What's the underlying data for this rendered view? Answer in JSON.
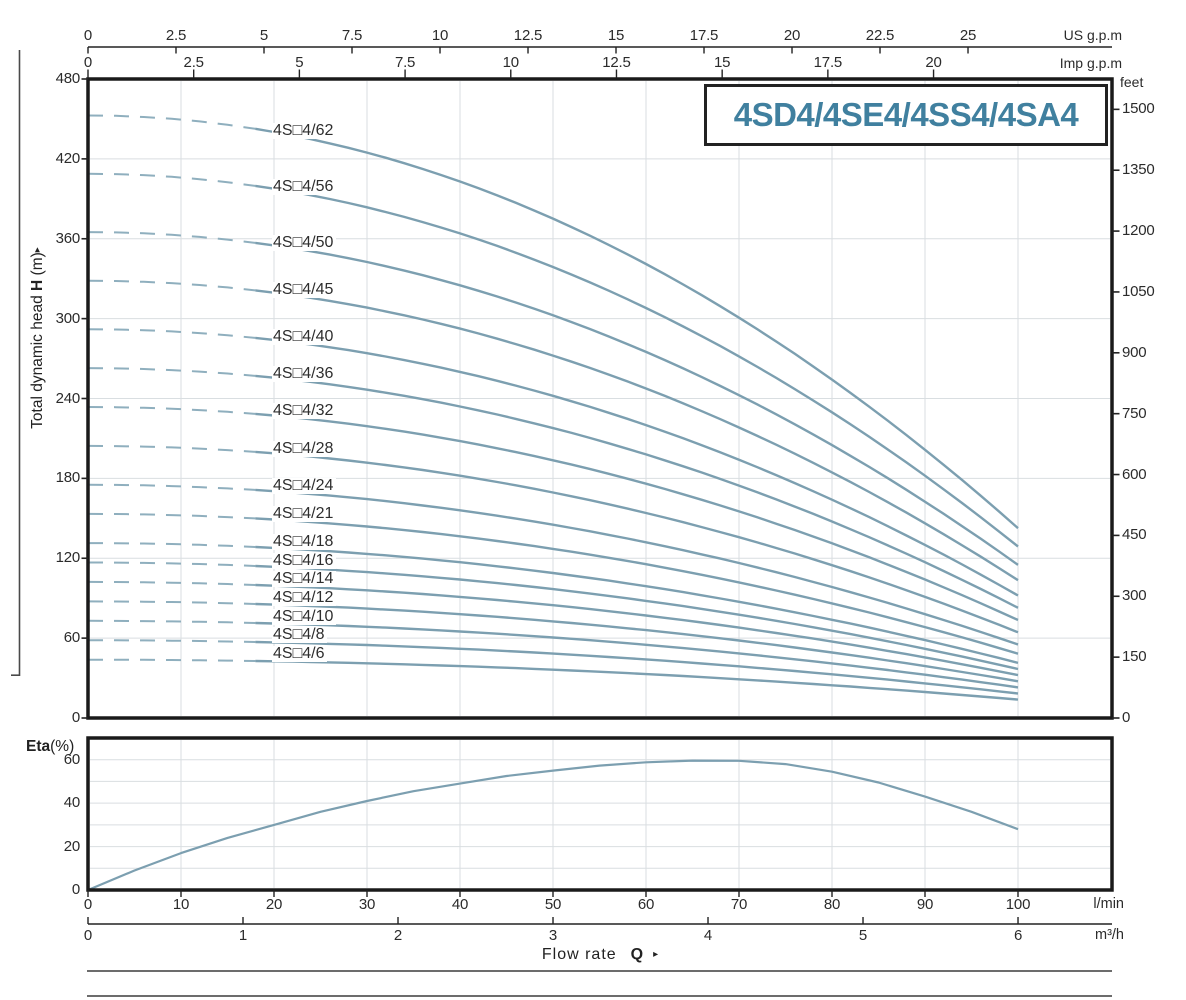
{
  "figure": {
    "title": "4SD4/4SE4/4SS4/4SA4",
    "flow_axis_label": {
      "text": "Flow rate",
      "bold": "Q",
      "arrow": "▸"
    },
    "head_axis_label": {
      "prefix": "Total dynamic head ",
      "bold": "H",
      "suffix": " (m)",
      "arrow": "▸"
    },
    "eta_axis_label": {
      "bold": "Eta",
      "suffix": "(%)"
    }
  },
  "colors": {
    "accent_title": "#40809f",
    "curve": "#7c9fb0",
    "curve_dash": "#8fafbe",
    "grid": "#d9dee1",
    "axis_box": "#1a1a1a",
    "thin_line": "#3c3c3c",
    "text": "#2b2b2b"
  },
  "chart_data": [
    {
      "type": "line",
      "title": "4SD4/4SE4/4SS4/4SA4",
      "xlabel": "Flow rate Q",
      "ylabel": "Total dynamic head H (m)",
      "x_axes": [
        {
          "label": "US g.p.m",
          "lmin_per_unit": 3.785,
          "ticks": [
            0,
            2.5,
            5,
            7.5,
            10,
            12.5,
            15,
            17.5,
            20,
            22.5,
            25
          ]
        },
        {
          "label": "Imp g.p.m",
          "lmin_per_unit": 4.546,
          "ticks": [
            0,
            2.5,
            5,
            7.5,
            10,
            12.5,
            15,
            17.5,
            20
          ]
        },
        {
          "label": "l/min",
          "lmin_per_unit": 1,
          "ticks": [
            0,
            10,
            20,
            30,
            40,
            50,
            60,
            70,
            80,
            90,
            100
          ]
        },
        {
          "label": "m³/h",
          "lmin_per_unit": 16.667,
          "ticks": [
            0,
            1,
            2,
            3,
            4,
            5,
            6
          ]
        }
      ],
      "y_axes": [
        {
          "label": "Total dynamic head H (m)",
          "unit": "m",
          "range": [
            0,
            480
          ],
          "ticks": [
            0,
            60,
            120,
            180,
            240,
            300,
            360,
            420,
            480
          ]
        },
        {
          "label": "feet",
          "unit": "feet",
          "m_per_unit": 0.3048,
          "ticks": [
            0,
            150,
            300,
            450,
            600,
            750,
            900,
            1050,
            1200,
            1350,
            1500
          ]
        }
      ],
      "grid": {
        "x_step_lmin": 10,
        "y_step_m": 60
      },
      "head_model": {
        "per_stage_shutoff_m": 7.3,
        "per_stage_quad_coeff": 0.0005,
        "dash_until_lmin": 18,
        "q_max_lmin": 100
      },
      "series": [
        {
          "name": "4S□4/62",
          "stages": 62,
          "shutoff_head_m": 452.6,
          "head_at_100lmin_m": 142.6
        },
        {
          "name": "4S□4/56",
          "stages": 56,
          "shutoff_head_m": 408.8,
          "head_at_100lmin_m": 128.8
        },
        {
          "name": "4S□4/50",
          "stages": 50,
          "shutoff_head_m": 365.0,
          "head_at_100lmin_m": 115.0
        },
        {
          "name": "4S□4/45",
          "stages": 45,
          "shutoff_head_m": 328.5,
          "head_at_100lmin_m": 103.5
        },
        {
          "name": "4S□4/40",
          "stages": 40,
          "shutoff_head_m": 292.0,
          "head_at_100lmin_m": 92.0
        },
        {
          "name": "4S□4/36",
          "stages": 36,
          "shutoff_head_m": 262.8,
          "head_at_100lmin_m": 82.8
        },
        {
          "name": "4S□4/32",
          "stages": 32,
          "shutoff_head_m": 233.6,
          "head_at_100lmin_m": 73.6
        },
        {
          "name": "4S□4/28",
          "stages": 28,
          "shutoff_head_m": 204.4,
          "head_at_100lmin_m": 64.4
        },
        {
          "name": "4S□4/24",
          "stages": 24,
          "shutoff_head_m": 175.2,
          "head_at_100lmin_m": 55.2
        },
        {
          "name": "4S□4/21",
          "stages": 21,
          "shutoff_head_m": 153.3,
          "head_at_100lmin_m": 48.3
        },
        {
          "name": "4S□4/18",
          "stages": 18,
          "shutoff_head_m": 131.4,
          "head_at_100lmin_m": 41.4
        },
        {
          "name": "4S□4/16",
          "stages": 16,
          "shutoff_head_m": 116.8,
          "head_at_100lmin_m": 36.8
        },
        {
          "name": "4S□4/14",
          "stages": 14,
          "shutoff_head_m": 102.2,
          "head_at_100lmin_m": 32.2
        },
        {
          "name": "4S□4/12",
          "stages": 12,
          "shutoff_head_m": 87.6,
          "head_at_100lmin_m": 27.6
        },
        {
          "name": "4S□4/10",
          "stages": 10,
          "shutoff_head_m": 73.0,
          "head_at_100lmin_m": 23.0
        },
        {
          "name": "4S□4/8",
          "stages": 8,
          "shutoff_head_m": 58.4,
          "head_at_100lmin_m": 18.4
        },
        {
          "name": "4S□4/6",
          "stages": 6,
          "shutoff_head_m": 43.8,
          "head_at_100lmin_m": 13.8
        }
      ]
    },
    {
      "type": "line",
      "ylabel": "Eta(%)",
      "ylim": [
        0,
        70
      ],
      "yticks": [
        0,
        20,
        40,
        60
      ],
      "grid": {
        "x_step_lmin": 10,
        "y_step_pct": 10
      },
      "x_lmin": [
        0,
        5,
        10,
        15,
        20,
        25,
        30,
        35,
        40,
        45,
        50,
        55,
        60,
        65,
        70,
        75,
        80,
        85,
        90,
        95,
        100
      ],
      "values": [
        0,
        9,
        17,
        24,
        30,
        36,
        41,
        45.5,
        49,
        52.5,
        55,
        57.3,
        58.8,
        59.6,
        59.5,
        58,
        54.5,
        49.5,
        43,
        36,
        28
      ]
    }
  ]
}
